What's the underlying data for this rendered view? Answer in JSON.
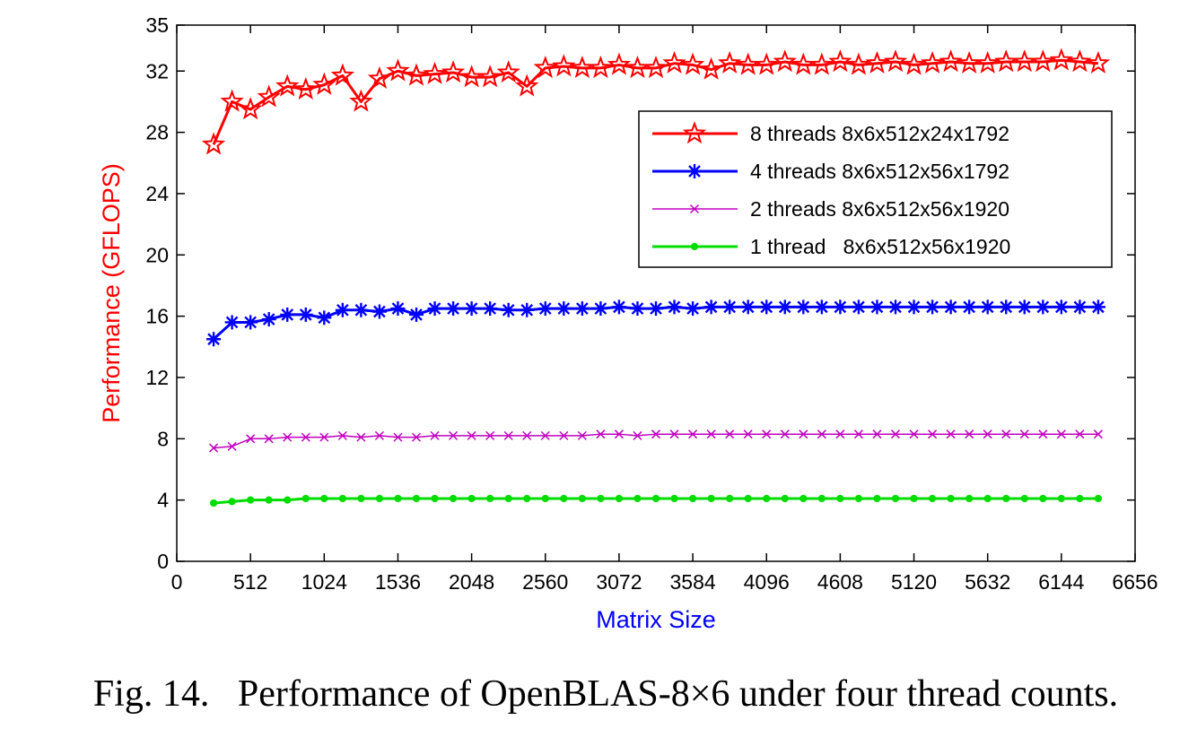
{
  "caption": "Fig. 14.   Performance of OpenBLAS-8×6 under four thread counts.",
  "chart_data": {
    "type": "line",
    "xlabel": "Matrix Size",
    "ylabel": "Performance (GFLOPS)",
    "xlabel_color": "#0000ff",
    "ylabel_color": "#ff0000",
    "xlim": [
      0,
      6656
    ],
    "ylim": [
      0,
      35
    ],
    "xticks": [
      0,
      512,
      1024,
      1536,
      2048,
      2560,
      3072,
      3584,
      4096,
      4608,
      5120,
      5632,
      6144,
      6656
    ],
    "yticks": [
      0,
      4,
      8,
      12,
      16,
      20,
      24,
      28,
      32,
      35
    ],
    "grid": false,
    "legend_position": "upper-right",
    "x": [
      256,
      384,
      512,
      640,
      768,
      896,
      1024,
      1152,
      1280,
      1408,
      1536,
      1664,
      1792,
      1920,
      2048,
      2176,
      2304,
      2432,
      2560,
      2688,
      2816,
      2944,
      3072,
      3200,
      3328,
      3456,
      3584,
      3712,
      3840,
      3968,
      4096,
      4224,
      4352,
      4480,
      4608,
      4736,
      4864,
      4992,
      5120,
      5248,
      5376,
      5504,
      5632,
      5760,
      5888,
      6016,
      6144,
      6272,
      6400
    ],
    "series": [
      {
        "name": "8 threads 8x6x512x24x1792",
        "color": "#ff0000",
        "marker": "star",
        "line_width": 3,
        "values": [
          27.2,
          30.0,
          29.5,
          30.3,
          31.0,
          30.8,
          31.1,
          31.7,
          30.0,
          31.5,
          32.0,
          31.7,
          31.8,
          31.9,
          31.6,
          31.6,
          31.9,
          31.0,
          32.2,
          32.3,
          32.2,
          32.2,
          32.4,
          32.2,
          32.2,
          32.5,
          32.4,
          32.1,
          32.5,
          32.4,
          32.4,
          32.6,
          32.4,
          32.4,
          32.6,
          32.4,
          32.5,
          32.6,
          32.4,
          32.5,
          32.6,
          32.5,
          32.5,
          32.6,
          32.6,
          32.6,
          32.7,
          32.6,
          32.5
        ]
      },
      {
        "name": "4 threads 8x6x512x56x1792",
        "color": "#0000ff",
        "marker": "plus-star",
        "line_width": 3,
        "values": [
          14.5,
          15.6,
          15.6,
          15.8,
          16.1,
          16.1,
          15.9,
          16.4,
          16.4,
          16.3,
          16.5,
          16.1,
          16.5,
          16.5,
          16.5,
          16.5,
          16.4,
          16.4,
          16.5,
          16.5,
          16.5,
          16.5,
          16.6,
          16.5,
          16.5,
          16.6,
          16.5,
          16.6,
          16.6,
          16.6,
          16.6,
          16.6,
          16.6,
          16.6,
          16.6,
          16.6,
          16.6,
          16.6,
          16.6,
          16.6,
          16.6,
          16.6,
          16.6,
          16.6,
          16.6,
          16.6,
          16.6,
          16.6,
          16.6
        ]
      },
      {
        "name": "2 threads 8x6x512x56x1920",
        "color": "#c000c0",
        "marker": "x",
        "line_width": 1.5,
        "values": [
          7.4,
          7.5,
          8.0,
          8.0,
          8.1,
          8.1,
          8.1,
          8.2,
          8.1,
          8.2,
          8.1,
          8.1,
          8.2,
          8.2,
          8.2,
          8.2,
          8.2,
          8.2,
          8.2,
          8.2,
          8.2,
          8.3,
          8.3,
          8.2,
          8.3,
          8.3,
          8.3,
          8.3,
          8.3,
          8.3,
          8.3,
          8.3,
          8.3,
          8.3,
          8.3,
          8.3,
          8.3,
          8.3,
          8.3,
          8.3,
          8.3,
          8.3,
          8.3,
          8.3,
          8.3,
          8.3,
          8.3,
          8.3,
          8.3
        ]
      },
      {
        "name": "1 thread   8x6x512x56x1920",
        "color": "#00dd00",
        "marker": "dot",
        "line_width": 3,
        "values": [
          3.8,
          3.9,
          4.0,
          4.0,
          4.0,
          4.1,
          4.1,
          4.1,
          4.1,
          4.1,
          4.1,
          4.1,
          4.1,
          4.1,
          4.1,
          4.1,
          4.1,
          4.1,
          4.1,
          4.1,
          4.1,
          4.1,
          4.1,
          4.1,
          4.1,
          4.1,
          4.1,
          4.1,
          4.1,
          4.1,
          4.1,
          4.1,
          4.1,
          4.1,
          4.1,
          4.1,
          4.1,
          4.1,
          4.1,
          4.1,
          4.1,
          4.1,
          4.1,
          4.1,
          4.1,
          4.1,
          4.1,
          4.1,
          4.1
        ]
      }
    ]
  }
}
